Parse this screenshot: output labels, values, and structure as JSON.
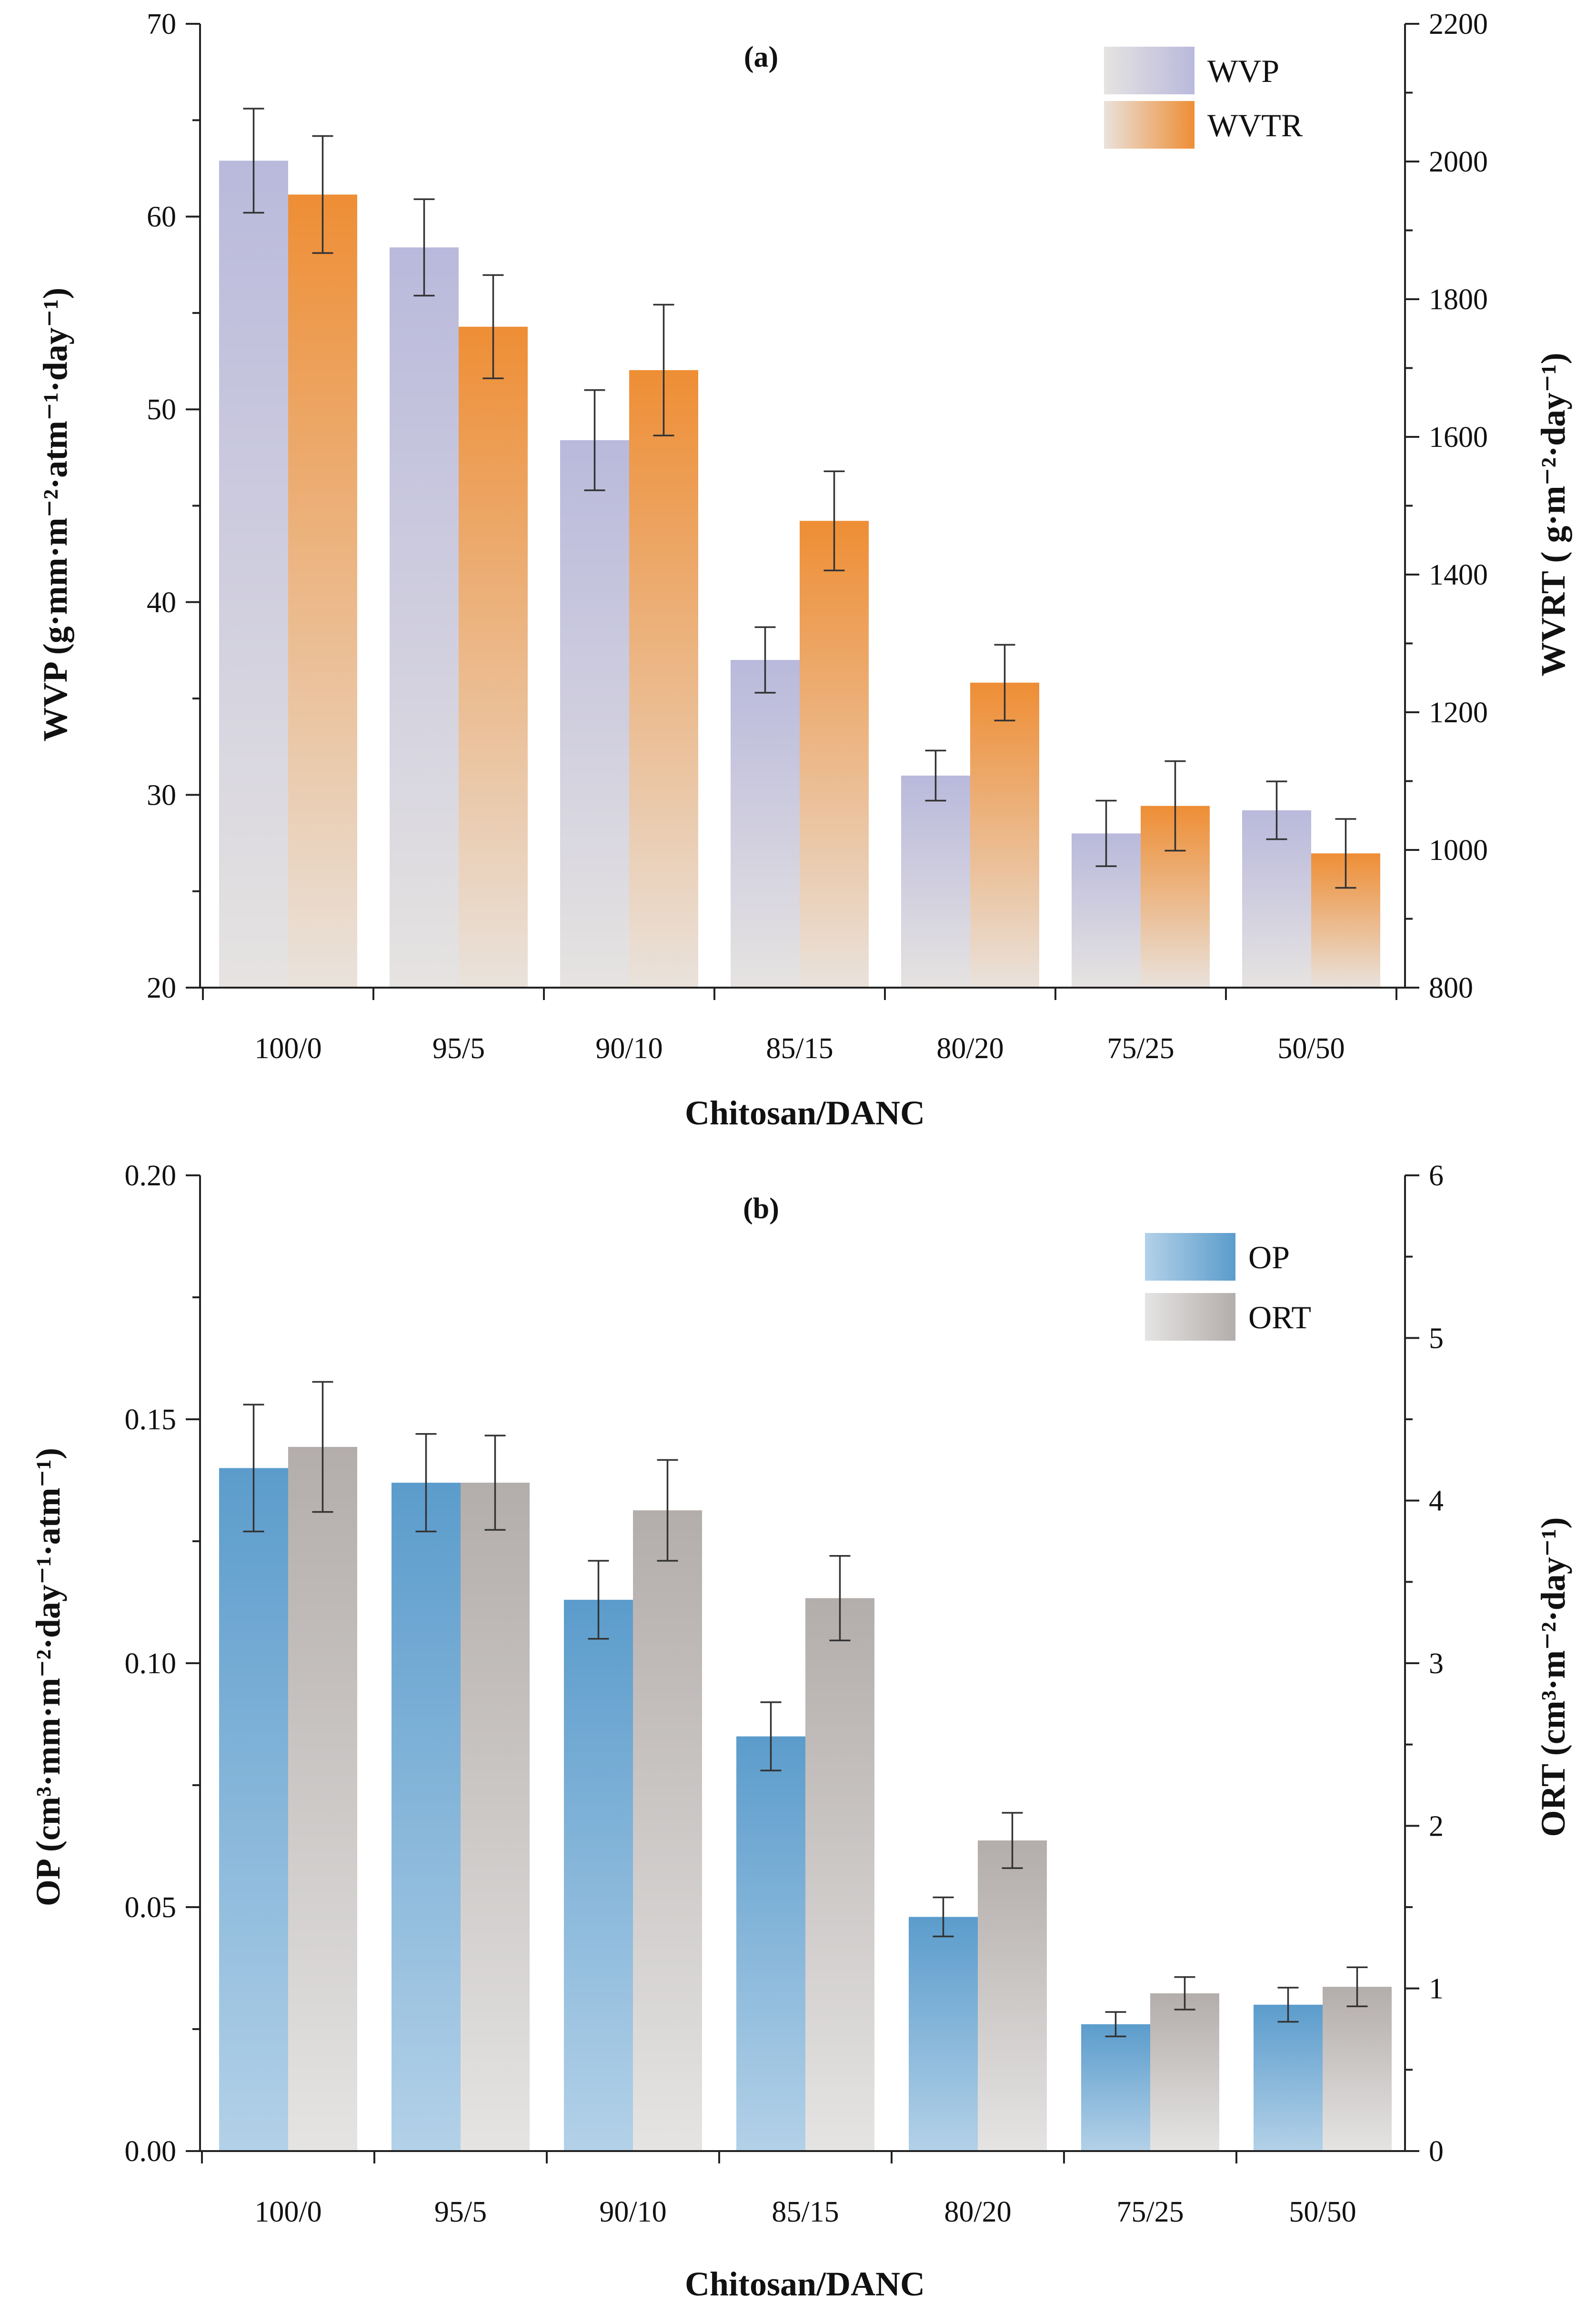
{
  "chart_data": [
    {
      "panel": "(a)",
      "type": "bar",
      "xlabel": "Chitosan/DANC",
      "categories": [
        "100/0",
        "95/5",
        "90/10",
        "85/15",
        "80/20",
        "75/25",
        "50/50"
      ],
      "y_left": {
        "label": "WVP (g·mm·m⁻²·atm⁻¹·day⁻¹)",
        "ylim": [
          20,
          70
        ],
        "ticks": [
          20,
          30,
          40,
          50,
          60,
          70
        ],
        "tick_labels": [
          "20",
          "30",
          "40",
          "50",
          "60",
          "70"
        ]
      },
      "y_right": {
        "label": "WVRT ( g·m⁻²·day⁻¹)",
        "ylim": [
          800,
          2200
        ],
        "ticks": [
          800,
          1000,
          1200,
          1400,
          1600,
          1800,
          2000,
          2200
        ],
        "tick_labels": [
          "800",
          "1000",
          "1200",
          "1400",
          "1600",
          "1800",
          "2000",
          "2200"
        ]
      },
      "series": [
        {
          "name": "WVP",
          "axis": "left",
          "values": [
            62.9,
            58.4,
            48.4,
            37.0,
            31.0,
            28.0,
            29.2
          ],
          "errors": [
            2.7,
            2.5,
            2.6,
            1.7,
            1.3,
            1.7,
            1.5
          ],
          "color_top": "#b9b9dc",
          "color_bottom": "#e6e3e1"
        },
        {
          "name": "WVTR",
          "axis": "right",
          "values": [
            1952,
            1760,
            1697,
            1478,
            1243,
            1064,
            995
          ],
          "errors": [
            85,
            75,
            95,
            72,
            55,
            65,
            50
          ],
          "color_top": "#ee8e35",
          "color_bottom": "#e9e2dc"
        }
      ],
      "legend": {
        "position": "top-right",
        "entries": [
          "WVP",
          "WVTR"
        ]
      }
    },
    {
      "panel": "(b)",
      "type": "bar",
      "xlabel": "Chitosan/DANC",
      "categories": [
        "100/0",
        "95/5",
        "90/10",
        "85/15",
        "80/20",
        "75/25",
        "50/50"
      ],
      "y_left": {
        "label": "OP (cm³·mm·m⁻²·day⁻¹·atm⁻¹)",
        "ylim": [
          0,
          0.2
        ],
        "ticks": [
          0,
          0.05,
          0.1,
          0.15,
          0.2
        ],
        "tick_labels": [
          "0.00",
          "0.05",
          "0.10",
          "0.15",
          "0.20"
        ]
      },
      "y_right": {
        "label": "ORT (cm³·m⁻²·day⁻¹)",
        "ylim": [
          0,
          6
        ],
        "ticks": [
          0,
          1,
          2,
          3,
          4,
          5,
          6
        ],
        "tick_labels": [
          "0",
          "1",
          "2",
          "3",
          "4",
          "5",
          "6"
        ]
      },
      "series": [
        {
          "name": "OP",
          "axis": "left",
          "values": [
            0.14,
            0.137,
            0.113,
            0.085,
            0.048,
            0.026,
            0.03
          ],
          "errors": [
            0.013,
            0.01,
            0.008,
            0.007,
            0.004,
            0.0025,
            0.0035
          ],
          "color_top": "#5b9ccc",
          "color_bottom": "#b3d1e8"
        },
        {
          "name": "ORT",
          "axis": "right",
          "values": [
            4.33,
            4.11,
            3.94,
            3.4,
            1.91,
            0.97,
            1.01
          ],
          "errors": [
            0.4,
            0.29,
            0.31,
            0.26,
            0.17,
            0.1,
            0.12
          ],
          "color_top": "#b3adab",
          "color_bottom": "#e5e4e3"
        }
      ],
      "legend": {
        "position": "top-right",
        "entries": [
          "OP",
          "ORT"
        ]
      }
    }
  ]
}
